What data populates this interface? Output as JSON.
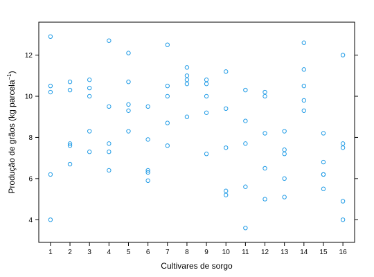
{
  "chart_data": {
    "type": "scatter",
    "title": "",
    "xlabel": "Cultivares de sorgo",
    "ylabel": {
      "prefix": "Produção de grãos (kg parcela",
      "superscript": "−1",
      "suffix": ")"
    },
    "xlim": [
      0.4,
      16.6
    ],
    "ylim": [
      2.9,
      13.6
    ],
    "xticks": [
      1,
      2,
      3,
      4,
      5,
      6,
      7,
      8,
      9,
      10,
      11,
      12,
      13,
      14,
      15,
      16
    ],
    "yticks": [
      4,
      6,
      8,
      10,
      12
    ],
    "grid": false,
    "marker_color": "#1f9be6",
    "points": [
      {
        "x": 1,
        "y": 12.9
      },
      {
        "x": 1,
        "y": 10.5
      },
      {
        "x": 1,
        "y": 10.2
      },
      {
        "x": 1,
        "y": 6.2
      },
      {
        "x": 1,
        "y": 4.0
      },
      {
        "x": 2,
        "y": 10.7
      },
      {
        "x": 2,
        "y": 10.3
      },
      {
        "x": 2,
        "y": 7.7
      },
      {
        "x": 2,
        "y": 7.6
      },
      {
        "x": 2,
        "y": 6.7
      },
      {
        "x": 3,
        "y": 10.8
      },
      {
        "x": 3,
        "y": 10.4
      },
      {
        "x": 3,
        "y": 10.0
      },
      {
        "x": 3,
        "y": 8.3
      },
      {
        "x": 3,
        "y": 7.3
      },
      {
        "x": 4,
        "y": 12.7
      },
      {
        "x": 4,
        "y": 9.5
      },
      {
        "x": 4,
        "y": 7.7
      },
      {
        "x": 4,
        "y": 7.3
      },
      {
        "x": 4,
        "y": 6.4
      },
      {
        "x": 5,
        "y": 12.1
      },
      {
        "x": 5,
        "y": 10.7
      },
      {
        "x": 5,
        "y": 9.6
      },
      {
        "x": 5,
        "y": 9.3
      },
      {
        "x": 5,
        "y": 8.3
      },
      {
        "x": 6,
        "y": 9.5
      },
      {
        "x": 6,
        "y": 7.9
      },
      {
        "x": 6,
        "y": 6.4
      },
      {
        "x": 6,
        "y": 6.3
      },
      {
        "x": 6,
        "y": 5.9
      },
      {
        "x": 7,
        "y": 12.5
      },
      {
        "x": 7,
        "y": 10.5
      },
      {
        "x": 7,
        "y": 10.0
      },
      {
        "x": 7,
        "y": 8.7
      },
      {
        "x": 7,
        "y": 7.6
      },
      {
        "x": 8,
        "y": 11.4
      },
      {
        "x": 8,
        "y": 11.0
      },
      {
        "x": 8,
        "y": 10.8
      },
      {
        "x": 8,
        "y": 10.6
      },
      {
        "x": 8,
        "y": 9.0
      },
      {
        "x": 9,
        "y": 10.8
      },
      {
        "x": 9,
        "y": 10.6
      },
      {
        "x": 9,
        "y": 10.0
      },
      {
        "x": 9,
        "y": 9.2
      },
      {
        "x": 9,
        "y": 7.2
      },
      {
        "x": 10,
        "y": 11.2
      },
      {
        "x": 10,
        "y": 9.4
      },
      {
        "x": 10,
        "y": 7.5
      },
      {
        "x": 10,
        "y": 5.4
      },
      {
        "x": 10,
        "y": 5.2
      },
      {
        "x": 11,
        "y": 10.3
      },
      {
        "x": 11,
        "y": 8.8
      },
      {
        "x": 11,
        "y": 7.7
      },
      {
        "x": 11,
        "y": 5.6
      },
      {
        "x": 11,
        "y": 3.6
      },
      {
        "x": 12,
        "y": 10.2
      },
      {
        "x": 12,
        "y": 10.0
      },
      {
        "x": 12,
        "y": 8.2
      },
      {
        "x": 12,
        "y": 6.5
      },
      {
        "x": 12,
        "y": 5.0
      },
      {
        "x": 13,
        "y": 8.3
      },
      {
        "x": 13,
        "y": 7.4
      },
      {
        "x": 13,
        "y": 7.2
      },
      {
        "x": 13,
        "y": 6.0
      },
      {
        "x": 13,
        "y": 5.1
      },
      {
        "x": 14,
        "y": 12.6
      },
      {
        "x": 14,
        "y": 11.3
      },
      {
        "x": 14,
        "y": 10.5
      },
      {
        "x": 14,
        "y": 9.8
      },
      {
        "x": 14,
        "y": 9.3
      },
      {
        "x": 15,
        "y": 8.2
      },
      {
        "x": 15,
        "y": 6.8
      },
      {
        "x": 15,
        "y": 6.2
      },
      {
        "x": 15,
        "y": 6.2
      },
      {
        "x": 15,
        "y": 5.5
      },
      {
        "x": 16,
        "y": 12.0
      },
      {
        "x": 16,
        "y": 7.7
      },
      {
        "x": 16,
        "y": 7.5
      },
      {
        "x": 16,
        "y": 4.9
      },
      {
        "x": 16,
        "y": 4.0
      }
    ]
  }
}
